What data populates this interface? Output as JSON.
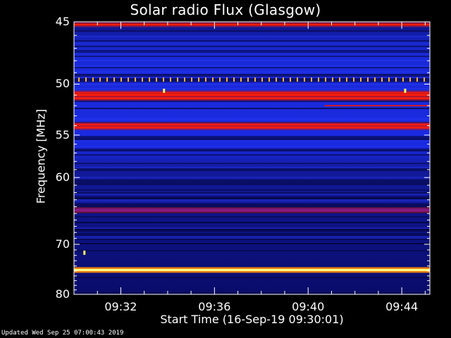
{
  "chart_data": {
    "type": "heatmap",
    "title": "Solar radio Flux (Glasgow)",
    "xlabel": "Start Time (16-Sep-19 09:30:01)",
    "ylabel": "Frequency [MHz]",
    "x_ticks": [
      "09:32",
      "09:36",
      "09:40",
      "09:44"
    ],
    "x_tick_minutes": [
      2,
      6,
      10,
      14
    ],
    "x_range_minutes": [
      0,
      15.2
    ],
    "y_ticks": [
      45,
      50,
      55,
      60,
      70,
      80
    ],
    "y_range_mhz": [
      45,
      80
    ],
    "y_scale": "reciprocal",
    "colormap": "blue-red-yellow",
    "bands": [
      {
        "mhz": 45.2,
        "level": "red"
      },
      {
        "mhz": 49.6,
        "level": "orange-dotted"
      },
      {
        "mhz": 50.8,
        "level": "red"
      },
      {
        "mhz": 51.0,
        "level": "red"
      },
      {
        "mhz": 51.3,
        "level": "red"
      },
      {
        "mhz": 52.0,
        "level": "red-partial"
      },
      {
        "mhz": 53.9,
        "level": "red"
      },
      {
        "mhz": 54.2,
        "level": "red"
      },
      {
        "mhz": 64.5,
        "level": "purple"
      },
      {
        "mhz": 74.8,
        "level": "yellow"
      }
    ]
  },
  "footer": "Updated Wed Sep 25 07:00:43 2019",
  "colors": {
    "background": "#000000",
    "low": "#0a0a7a",
    "mid": "#1a28e0",
    "high": "#ff1a0a",
    "peak": "#ffff80"
  }
}
